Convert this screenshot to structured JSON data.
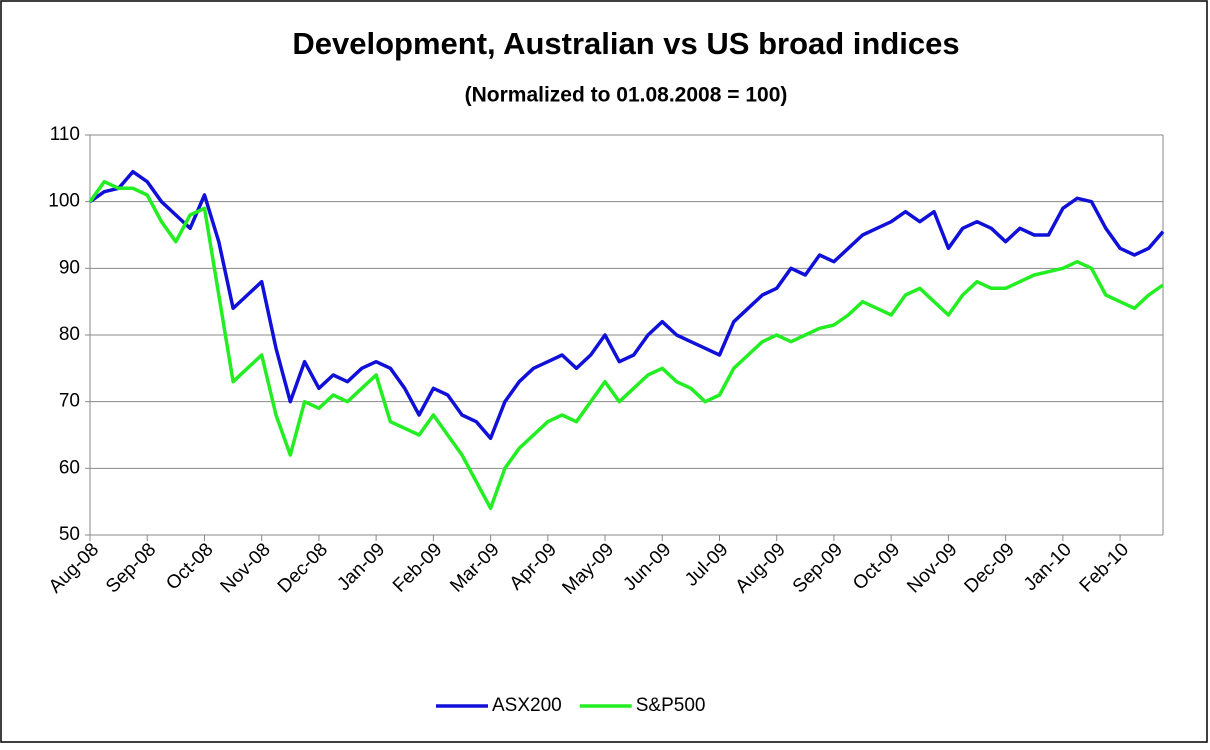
{
  "chart_data": {
    "type": "line",
    "title": "Development, Australian vs US broad indices",
    "subtitle": "(Normalized to 01.08.2008 = 100)",
    "categories": [
      "Aug-08",
      null,
      null,
      null,
      "Sep-08",
      null,
      null,
      null,
      "Oct-08",
      null,
      null,
      null,
      "Nov-08",
      null,
      null,
      null,
      "Dec-08",
      null,
      null,
      null,
      "Jan-09",
      null,
      null,
      null,
      "Feb-09",
      null,
      null,
      null,
      "Mar-09",
      null,
      null,
      null,
      "Apr-09",
      null,
      null,
      null,
      "May-09",
      null,
      null,
      null,
      "Jun-09",
      null,
      null,
      null,
      "Jul-09",
      null,
      null,
      null,
      "Aug-09",
      null,
      null,
      null,
      "Sep-09",
      null,
      null,
      null,
      "Oct-09",
      null,
      null,
      null,
      "Nov-09",
      null,
      null,
      null,
      "Dec-09",
      null,
      null,
      null,
      "Jan-10",
      null,
      null,
      null,
      "Feb-10",
      null,
      null,
      null
    ],
    "series": [
      {
        "name": "ASX200",
        "color": "#1010d8",
        "values": [
          100,
          101.5,
          102,
          104.5,
          103,
          100,
          98,
          96,
          101,
          94,
          84,
          86,
          88,
          78,
          70,
          76,
          72,
          74,
          73,
          75,
          76,
          75,
          72,
          68,
          72,
          71,
          68,
          67,
          64.5,
          70,
          73,
          75,
          76,
          77,
          75,
          77,
          80,
          76,
          77,
          80,
          82,
          80,
          79,
          78,
          77,
          82,
          84,
          86,
          87,
          90,
          89,
          92,
          91,
          93,
          95,
          96,
          97,
          98.5,
          97,
          98.5,
          93,
          96,
          97,
          96,
          94,
          96,
          95,
          95,
          99,
          100.5,
          100,
          96,
          93,
          92,
          93,
          95.5
        ]
      },
      {
        "name": "S&P500",
        "color": "#22ee22",
        "values": [
          100,
          103,
          102,
          102,
          101,
          97,
          94,
          98,
          99,
          86,
          73,
          75,
          77,
          68,
          62,
          70,
          69,
          71,
          70,
          72,
          74,
          67,
          66,
          65,
          68,
          65,
          62,
          58,
          54,
          60,
          63,
          65,
          67,
          68,
          67,
          70,
          73,
          70,
          72,
          74,
          75,
          73,
          72,
          70,
          71,
          75,
          77,
          79,
          80,
          79,
          80,
          81,
          81.5,
          83,
          85,
          84,
          83,
          86,
          87,
          85,
          83,
          86,
          88,
          87,
          87,
          88,
          89,
          89.5,
          90,
          91,
          90,
          86,
          85,
          84,
          86,
          87.5
        ]
      }
    ],
    "ylim": [
      50,
      110
    ],
    "yticks": [
      50,
      60,
      70,
      80,
      90,
      100,
      110
    ],
    "grid": true,
    "legend": "bottom"
  }
}
